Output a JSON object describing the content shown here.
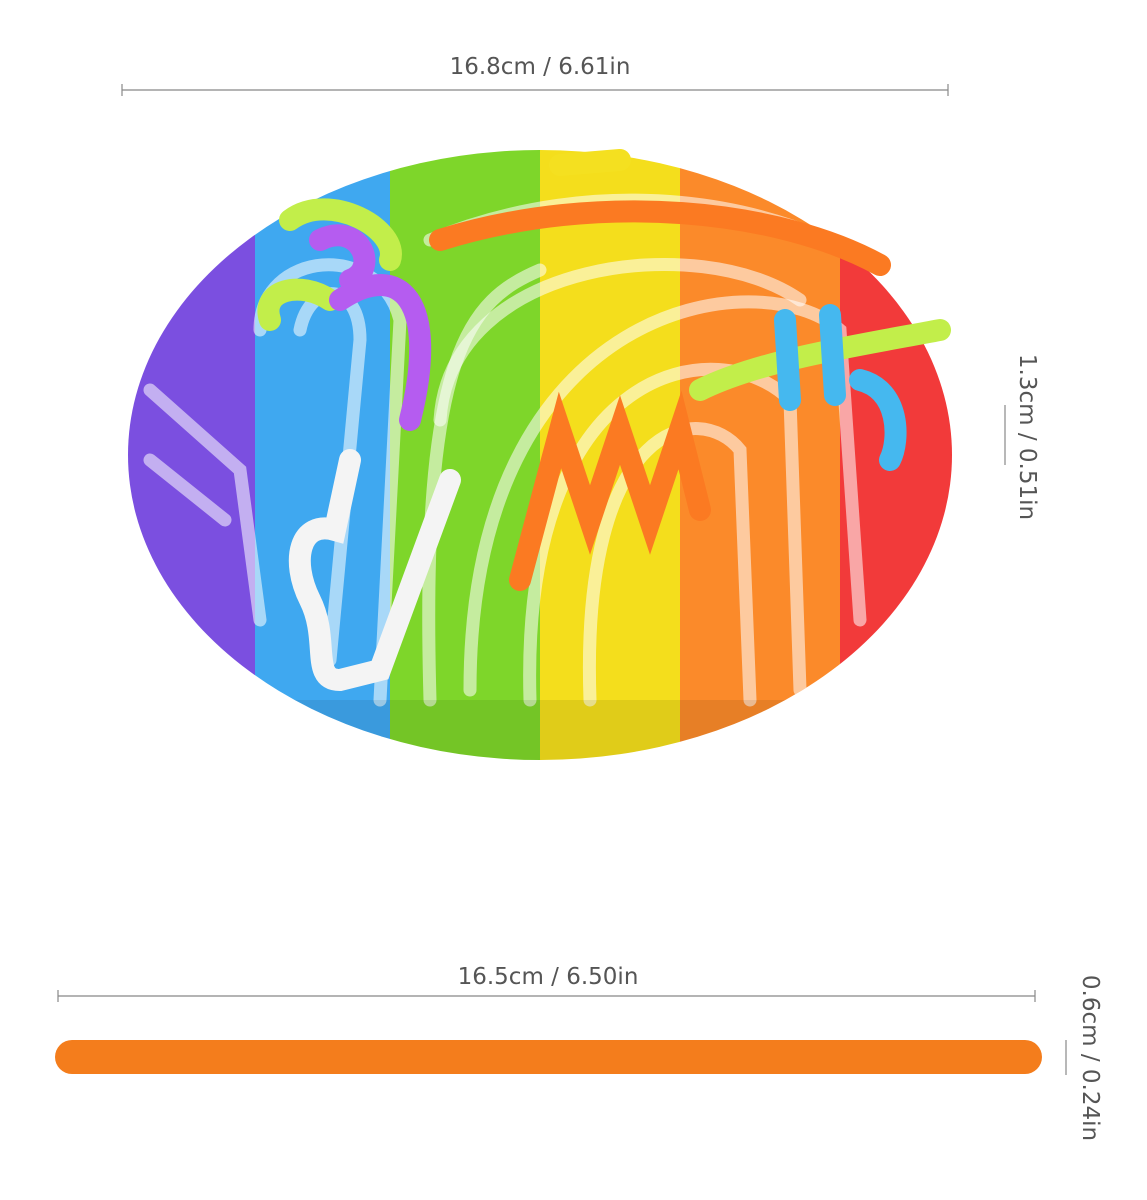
{
  "dimensions": {
    "board_width": "16.8cm / 6.61in",
    "board_height": "1.3cm / 0.51in",
    "rod_length": "16.5cm / 6.50in",
    "rod_thickness": "0.6cm / 0.24in"
  }
}
